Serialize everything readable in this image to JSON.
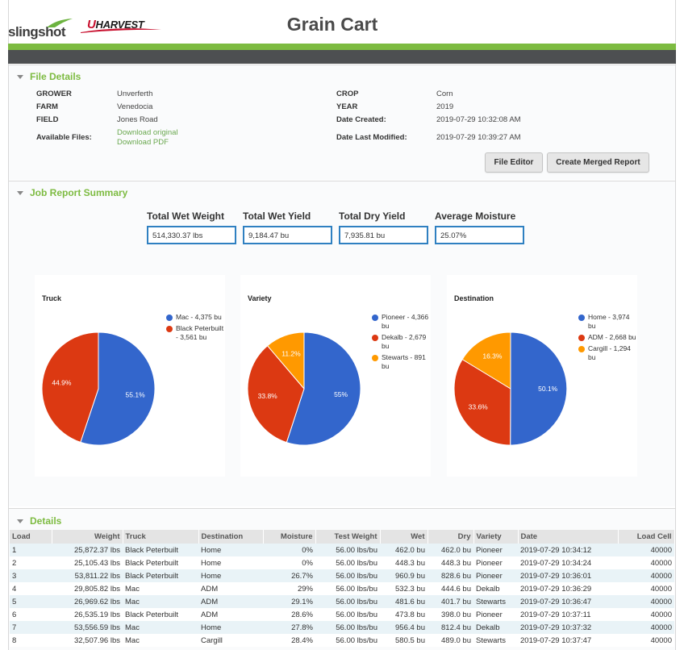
{
  "header": {
    "title": "Grain Cart",
    "logo_slingshot": "slingshot",
    "logo_uharvest_u": "U",
    "logo_uharvest_rest": "HARVEST"
  },
  "file_details": {
    "title": "File Details",
    "grower_label": "GROWER",
    "grower": "Unverferth",
    "farm_label": "FARM",
    "farm": "Venedocia",
    "field_label": "FIELD",
    "field": "Jones Road",
    "available_files_label": "Available Files:",
    "download_original": "Download original",
    "download_pdf": "Download PDF",
    "crop_label": "CROP",
    "crop": "Corn",
    "year_label": "YEAR",
    "year": "2019",
    "date_created_label": "Date Created:",
    "date_created": "2019-07-29 10:32:08 AM",
    "date_modified_label": "Date Last Modified:",
    "date_modified": "2019-07-29 10:39:27 AM",
    "file_editor_button": "File Editor",
    "merged_report_button": "Create Merged Report"
  },
  "job_summary": {
    "title": "Job Report Summary",
    "total_wet_weight_label": "Total Wet Weight",
    "total_wet_weight": "514,330.37 lbs",
    "total_wet_yield_label": "Total Wet Yield",
    "total_wet_yield": "9,184.47 bu",
    "total_dry_yield_label": "Total Dry Yield",
    "total_dry_yield": "7,935.81 bu",
    "average_moisture_label": "Average Moisture",
    "average_moisture": "25.07%"
  },
  "chart_data": [
    {
      "type": "pie",
      "title": "Truck",
      "categories": [
        "Mac",
        "Black Peterbuilt"
      ],
      "values": [
        4375,
        3561
      ],
      "percent_labels": [
        "55.1%",
        "44.9%"
      ],
      "legend": [
        "Mac - 4,375 bu",
        "Black Peterbuilt - 3,561 bu"
      ],
      "colors": [
        "#3366cc",
        "#dc3912"
      ],
      "legend_position": "right"
    },
    {
      "type": "pie",
      "title": "Variety",
      "categories": [
        "Pioneer",
        "Dekalb",
        "Stewarts"
      ],
      "values": [
        4366,
        2679,
        891
      ],
      "percent_labels": [
        "55%",
        "33.8%",
        "11.2%"
      ],
      "legend": [
        "Pioneer - 4,366 bu",
        "Dekalb - 2,679 bu",
        "Stewarts - 891 bu"
      ],
      "colors": [
        "#3366cc",
        "#dc3912",
        "#ff9900"
      ],
      "legend_position": "right"
    },
    {
      "type": "pie",
      "title": "Destination",
      "categories": [
        "Home",
        "ADM",
        "Cargill"
      ],
      "values": [
        3974,
        2668,
        1294
      ],
      "percent_labels": [
        "50.1%",
        "33.6%",
        "16.3%"
      ],
      "legend": [
        "Home - 3,974 bu",
        "ADM - 2,668 bu",
        "Cargill - 1,294 bu"
      ],
      "colors": [
        "#3366cc",
        "#dc3912",
        "#ff9900"
      ],
      "legend_position": "right"
    }
  ],
  "details": {
    "title": "Details",
    "columns": [
      "Load",
      "Weight",
      "Truck",
      "Destination",
      "Moisture",
      "Test Weight",
      "Wet",
      "Dry",
      "Variety",
      "Date",
      "Load Cell"
    ],
    "rows": [
      [
        "1",
        "25,872.37 lbs",
        "Black Peterbuilt",
        "Home",
        "0%",
        "56.00 lbs/bu",
        "462.0 bu",
        "462.0 bu",
        "Pioneer",
        "2019-07-29 10:34:12",
        "40000"
      ],
      [
        "2",
        "25,105.43 lbs",
        "Black Peterbuilt",
        "Home",
        "0%",
        "56.00 lbs/bu",
        "448.3 bu",
        "448.3 bu",
        "Pioneer",
        "2019-07-29 10:34:24",
        "40000"
      ],
      [
        "3",
        "53,811.22 lbs",
        "Black Peterbuilt",
        "Home",
        "26.7%",
        "56.00 lbs/bu",
        "960.9 bu",
        "828.6 bu",
        "Pioneer",
        "2019-07-29 10:36:01",
        "40000"
      ],
      [
        "4",
        "29,805.82 lbs",
        "Mac",
        "ADM",
        "29%",
        "56.00 lbs/bu",
        "532.3 bu",
        "444.6 bu",
        "Dekalb",
        "2019-07-29 10:36:29",
        "40000"
      ],
      [
        "5",
        "26,969.62 lbs",
        "Mac",
        "ADM",
        "29.1%",
        "56.00 lbs/bu",
        "481.6 bu",
        "401.7 bu",
        "Stewarts",
        "2019-07-29 10:36:47",
        "40000"
      ],
      [
        "6",
        "26,535.19 lbs",
        "Black Peterbuilt",
        "ADM",
        "28.6%",
        "56.00 lbs/bu",
        "473.8 bu",
        "398.0 bu",
        "Pioneer",
        "2019-07-29 10:37:11",
        "40000"
      ],
      [
        "7",
        "53,556.59 lbs",
        "Mac",
        "Home",
        "27.8%",
        "56.00 lbs/bu",
        "956.4 bu",
        "812.4 bu",
        "Dekalb",
        "2019-07-29 10:37:32",
        "40000"
      ],
      [
        "8",
        "32,507.96 lbs",
        "Mac",
        "Cargill",
        "28.4%",
        "56.00 lbs/bu",
        "580.5 bu",
        "489.0 bu",
        "Stewarts",
        "2019-07-29 10:37:47",
        "40000"
      ]
    ]
  }
}
